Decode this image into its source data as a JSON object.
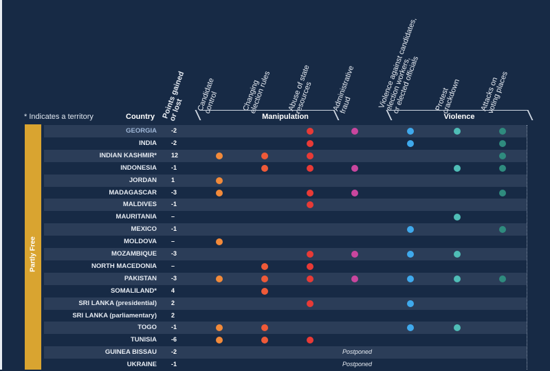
{
  "chart_data": {
    "type": "table",
    "title": "",
    "note": "* Indicates a territory",
    "country_header": "Country",
    "points_header": "Points gained or lost",
    "category_band": "Partly Free",
    "groups": [
      {
        "name": "Manipulation",
        "columns": [
          "Candidate control",
          "Changing election rules",
          "Abuse of state resources",
          "Administrative fraud"
        ]
      },
      {
        "name": "Violence",
        "columns": [
          "Violence against candidates, election workers, or elected officials",
          "Protest crackdown",
          "Attacks on voting places"
        ]
      }
    ],
    "column_headers": [
      "Candidate\ncontrol",
      "Changing\nelection rules",
      "Abuse of state\nresources",
      "Administrative\nfraud",
      "Violence against candidates,\nelection workers,\nor elected officials",
      "Protest\ncrackdown",
      "Attacks on\nvoting places"
    ],
    "column_colors": [
      "#f28a3a",
      "#ef5a38",
      "#e83a36",
      "#c9469e",
      "#3fa9ec",
      "#4fbdb6",
      "#2f8b7e"
    ],
    "rows": [
      {
        "country": "GEORGIA",
        "points": "-2",
        "flags": [
          0,
          0,
          1,
          1,
          1,
          1,
          1
        ]
      },
      {
        "country": "INDIA",
        "points": "-2",
        "flags": [
          0,
          0,
          1,
          0,
          1,
          0,
          1
        ]
      },
      {
        "country": "INDIAN KASHMIR*",
        "points": "12",
        "flags": [
          1,
          1,
          1,
          0,
          0,
          0,
          1
        ]
      },
      {
        "country": "INDONESIA",
        "points": "-1",
        "flags": [
          0,
          1,
          1,
          1,
          0,
          1,
          1
        ]
      },
      {
        "country": "JORDAN",
        "points": "1",
        "flags": [
          1,
          0,
          0,
          0,
          0,
          0,
          0
        ]
      },
      {
        "country": "MADAGASCAR",
        "points": "-3",
        "flags": [
          1,
          0,
          1,
          1,
          0,
          0,
          1
        ]
      },
      {
        "country": "MALDIVES",
        "points": "-1",
        "flags": [
          0,
          0,
          1,
          0,
          0,
          0,
          0
        ]
      },
      {
        "country": "MAURITANIA",
        "points": "–",
        "flags": [
          0,
          0,
          0,
          0,
          0,
          1,
          0
        ]
      },
      {
        "country": "MEXICO",
        "points": "-1",
        "flags": [
          0,
          0,
          0,
          0,
          1,
          0,
          1
        ]
      },
      {
        "country": "MOLDOVA",
        "points": "–",
        "flags": [
          1,
          0,
          0,
          0,
          0,
          0,
          0
        ]
      },
      {
        "country": "MOZAMBIQUE",
        "points": "-3",
        "flags": [
          0,
          0,
          1,
          1,
          1,
          1,
          0
        ]
      },
      {
        "country": "NORTH MACEDONIA",
        "points": "–",
        "flags": [
          0,
          1,
          1,
          0,
          0,
          0,
          0
        ]
      },
      {
        "country": "PAKISTAN",
        "points": "-3",
        "flags": [
          1,
          1,
          1,
          1,
          1,
          1,
          1
        ]
      },
      {
        "country": "SOMALILAND*",
        "points": "4",
        "flags": [
          0,
          1,
          0,
          0,
          0,
          0,
          0
        ]
      },
      {
        "country": "SRI LANKA (presidential)",
        "points": "2",
        "flags": [
          0,
          0,
          1,
          0,
          1,
          0,
          0
        ]
      },
      {
        "country": "SRI LANKA (parliamentary)",
        "points": "2",
        "flags": [
          0,
          0,
          0,
          0,
          0,
          0,
          0
        ]
      },
      {
        "country": "TOGO",
        "points": "-1",
        "flags": [
          1,
          1,
          0,
          0,
          1,
          1,
          0
        ]
      },
      {
        "country": "TUNISIA",
        "points": "-6",
        "flags": [
          1,
          1,
          1,
          0,
          0,
          0,
          0
        ]
      },
      {
        "country": "GUINEA BISSAU",
        "points": "-2",
        "flags": null,
        "status": "Postponed"
      },
      {
        "country": "UKRAINE",
        "points": "-1",
        "flags": null,
        "status": "Postponed"
      }
    ]
  }
}
